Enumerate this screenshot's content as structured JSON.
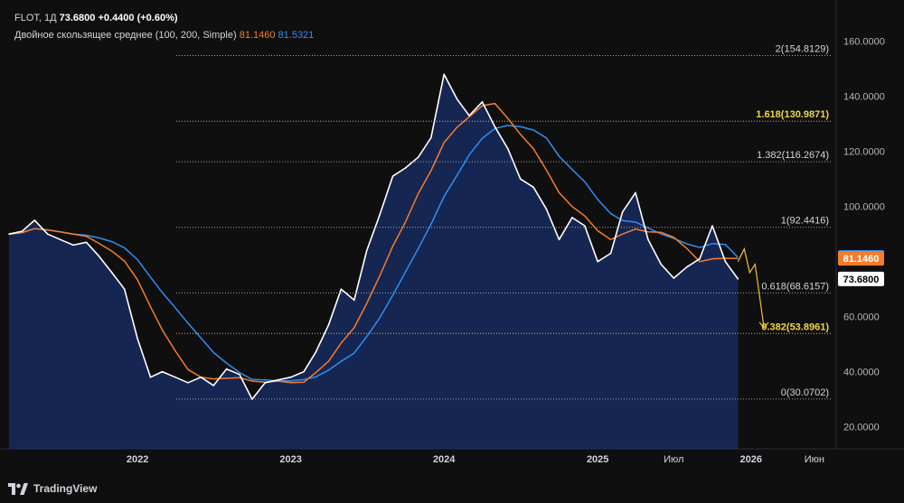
{
  "legend": {
    "symbol": "FLOT, 1Д",
    "price": "73.6800",
    "change": "+0.4400 (+0.60%)",
    "indicator": "Двойное скользящее среднее (100, 200, Simple)",
    "ma_fast_value": "81.1460",
    "ma_slow_value": "81.5321"
  },
  "branding": {
    "logo_text": "TradingView",
    "logo_icon": "tradingview-logo-icon"
  },
  "colors": {
    "background": "#0f0f0f",
    "price_line": "#ffffff",
    "area_fill": "#1e3a8a",
    "ma_fast": "#f57c29",
    "ma_slow": "#2f8ef5",
    "fib_highlight": "#f2d544",
    "fib_default": "#b2b5be",
    "projection": "#f2c230"
  },
  "chart_data": {
    "type": "area",
    "ylim": [
      12,
      175
    ],
    "y_ticks": [
      "160.0000",
      "140.0000",
      "120.0000",
      "100.0000",
      "80.0000",
      "60.0000",
      "40.0000",
      "20.0000"
    ],
    "x_labels": [
      "2022",
      "2023",
      "2024",
      "2025",
      "Июл",
      "2026",
      "Июн"
    ],
    "grid": false,
    "series": [
      {
        "name": "FLOT",
        "x": [
          "2021-03",
          "2021-04",
          "2021-05",
          "2021-06",
          "2021-07",
          "2021-08",
          "2021-09",
          "2021-10",
          "2021-11",
          "2021-12",
          "2022-01",
          "2022-02",
          "2022-03",
          "2022-04",
          "2022-05",
          "2022-06",
          "2022-07",
          "2022-08",
          "2022-09",
          "2022-10",
          "2022-11",
          "2022-12",
          "2023-01",
          "2023-02",
          "2023-03",
          "2023-04",
          "2023-05",
          "2023-06",
          "2023-07",
          "2023-08",
          "2023-09",
          "2023-10",
          "2023-11",
          "2023-12",
          "2024-01",
          "2024-02",
          "2024-03",
          "2024-04",
          "2024-05",
          "2024-06",
          "2024-07",
          "2024-08",
          "2024-09",
          "2024-10",
          "2024-11",
          "2024-12",
          "2025-01",
          "2025-02",
          "2025-03",
          "2025-04",
          "2025-05",
          "2025-06",
          "2025-07",
          "2025-08",
          "2025-09",
          "2025-10",
          "2025-11",
          "2025-12"
        ],
        "values": [
          90,
          91,
          95,
          90,
          88,
          86,
          87,
          82,
          76,
          70,
          52,
          38,
          40,
          38,
          36,
          38,
          35,
          41,
          39,
          30,
          36,
          37,
          38,
          40,
          47,
          57,
          70,
          66,
          84,
          97,
          111,
          114,
          118,
          125,
          148,
          139,
          133,
          138,
          129,
          121,
          110,
          107,
          99,
          88,
          96,
          93,
          80,
          83,
          98,
          105,
          88,
          79,
          74,
          78,
          81,
          93,
          80,
          73.68
        ]
      },
      {
        "name": "MA 100",
        "value": 81.146
      },
      {
        "name": "MA 200",
        "value": 81.5321
      }
    ],
    "last_price_label": "73.6800",
    "ma_labels": [
      "81.1460",
      "81.5321"
    ],
    "fib_levels": [
      {
        "label": "0(30.0702)",
        "value": 30.0702,
        "highlight": false
      },
      {
        "label": "0.382(53.8961)",
        "value": 53.8961,
        "highlight": true
      },
      {
        "label": "0.618(68.6157)",
        "value": 68.6157,
        "highlight": false
      },
      {
        "label": "1(92.4416)",
        "value": 92.4416,
        "highlight": false
      },
      {
        "label": "1.382(116.2674)",
        "value": 116.2674,
        "highlight": false
      },
      {
        "label": "1.618(130.9871)",
        "value": 130.9871,
        "highlight": true
      },
      {
        "label": "2(154.8129)",
        "value": 154.8129,
        "highlight": false
      }
    ],
    "projection": {
      "x": [
        "2025-12",
        "2026-01",
        "2026-02"
      ],
      "values": [
        80,
        73.5,
        56
      ]
    }
  }
}
